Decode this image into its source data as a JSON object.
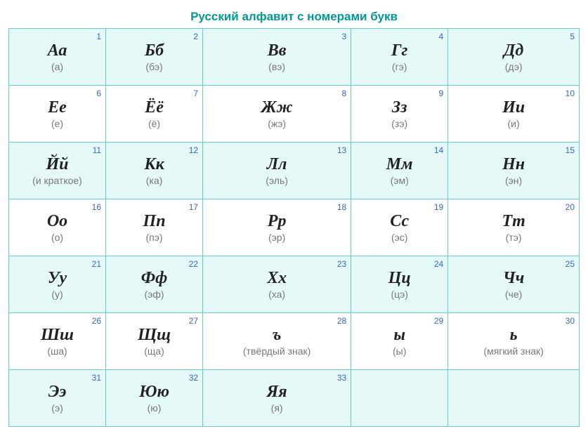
{
  "title": "Русский алфавит с номерами букв",
  "colors": {
    "title": "#009999",
    "number": "#3366cc",
    "letter": "#222222",
    "pronunciation": "#777777",
    "border": "#66cccc",
    "tinted_bg": "#e6f9f9",
    "plain_bg": "#ffffff"
  },
  "typography": {
    "title_fontsize": 17,
    "letter_fontsize": 24,
    "letter_font": "Times New Roman italic bold",
    "number_fontsize": 12,
    "pron_fontsize": 14
  },
  "grid": {
    "columns": 5,
    "column_widths_pct": [
      17,
      17,
      26,
      17,
      23
    ]
  },
  "cells": [
    {
      "n": 1,
      "letter": "Аа",
      "pron": "(а)"
    },
    {
      "n": 2,
      "letter": "Бб",
      "pron": "(бэ)"
    },
    {
      "n": 3,
      "letter": "Вв",
      "pron": "(вэ)"
    },
    {
      "n": 4,
      "letter": "Гг",
      "pron": "(гэ)"
    },
    {
      "n": 5,
      "letter": "Дд",
      "pron": "(дэ)"
    },
    {
      "n": 6,
      "letter": "Ее",
      "pron": "(е)"
    },
    {
      "n": 7,
      "letter": "Ёё",
      "pron": "(ё)"
    },
    {
      "n": 8,
      "letter": "Жж",
      "pron": "(жэ)"
    },
    {
      "n": 9,
      "letter": "Зз",
      "pron": "(зэ)"
    },
    {
      "n": 10,
      "letter": "Ии",
      "pron": "(и)"
    },
    {
      "n": 11,
      "letter": "Йй",
      "pron": "(и краткое)"
    },
    {
      "n": 12,
      "letter": "Кк",
      "pron": "(ка)"
    },
    {
      "n": 13,
      "letter": "Лл",
      "pron": "(эль)"
    },
    {
      "n": 14,
      "letter": "Мм",
      "pron": "(эм)"
    },
    {
      "n": 15,
      "letter": "Нн",
      "pron": "(эн)"
    },
    {
      "n": 16,
      "letter": "Оо",
      "pron": "(о)"
    },
    {
      "n": 17,
      "letter": "Пп",
      "pron": "(пэ)"
    },
    {
      "n": 18,
      "letter": "Рр",
      "pron": "(эр)"
    },
    {
      "n": 19,
      "letter": "Сс",
      "pron": "(эс)"
    },
    {
      "n": 20,
      "letter": "Тт",
      "pron": "(тэ)"
    },
    {
      "n": 21,
      "letter": "Уу",
      "pron": "(у)"
    },
    {
      "n": 22,
      "letter": "Фф",
      "pron": "(эф)"
    },
    {
      "n": 23,
      "letter": "Хх",
      "pron": "(ха)"
    },
    {
      "n": 24,
      "letter": "Цц",
      "pron": "(цэ)"
    },
    {
      "n": 25,
      "letter": "Чч",
      "pron": "(че)"
    },
    {
      "n": 26,
      "letter": "Шш",
      "pron": "(ша)"
    },
    {
      "n": 27,
      "letter": "Щщ",
      "pron": "(ща)"
    },
    {
      "n": 28,
      "letter": "ъ",
      "pron": "(твёрдый знак)"
    },
    {
      "n": 29,
      "letter": "ы",
      "pron": "(ы)"
    },
    {
      "n": 30,
      "letter": "ь",
      "pron": "(мягкий знак)"
    },
    {
      "n": 31,
      "letter": "Ээ",
      "pron": "(э)"
    },
    {
      "n": 32,
      "letter": "Юю",
      "pron": "(ю)"
    },
    {
      "n": 33,
      "letter": "Яя",
      "pron": "(я)"
    }
  ]
}
